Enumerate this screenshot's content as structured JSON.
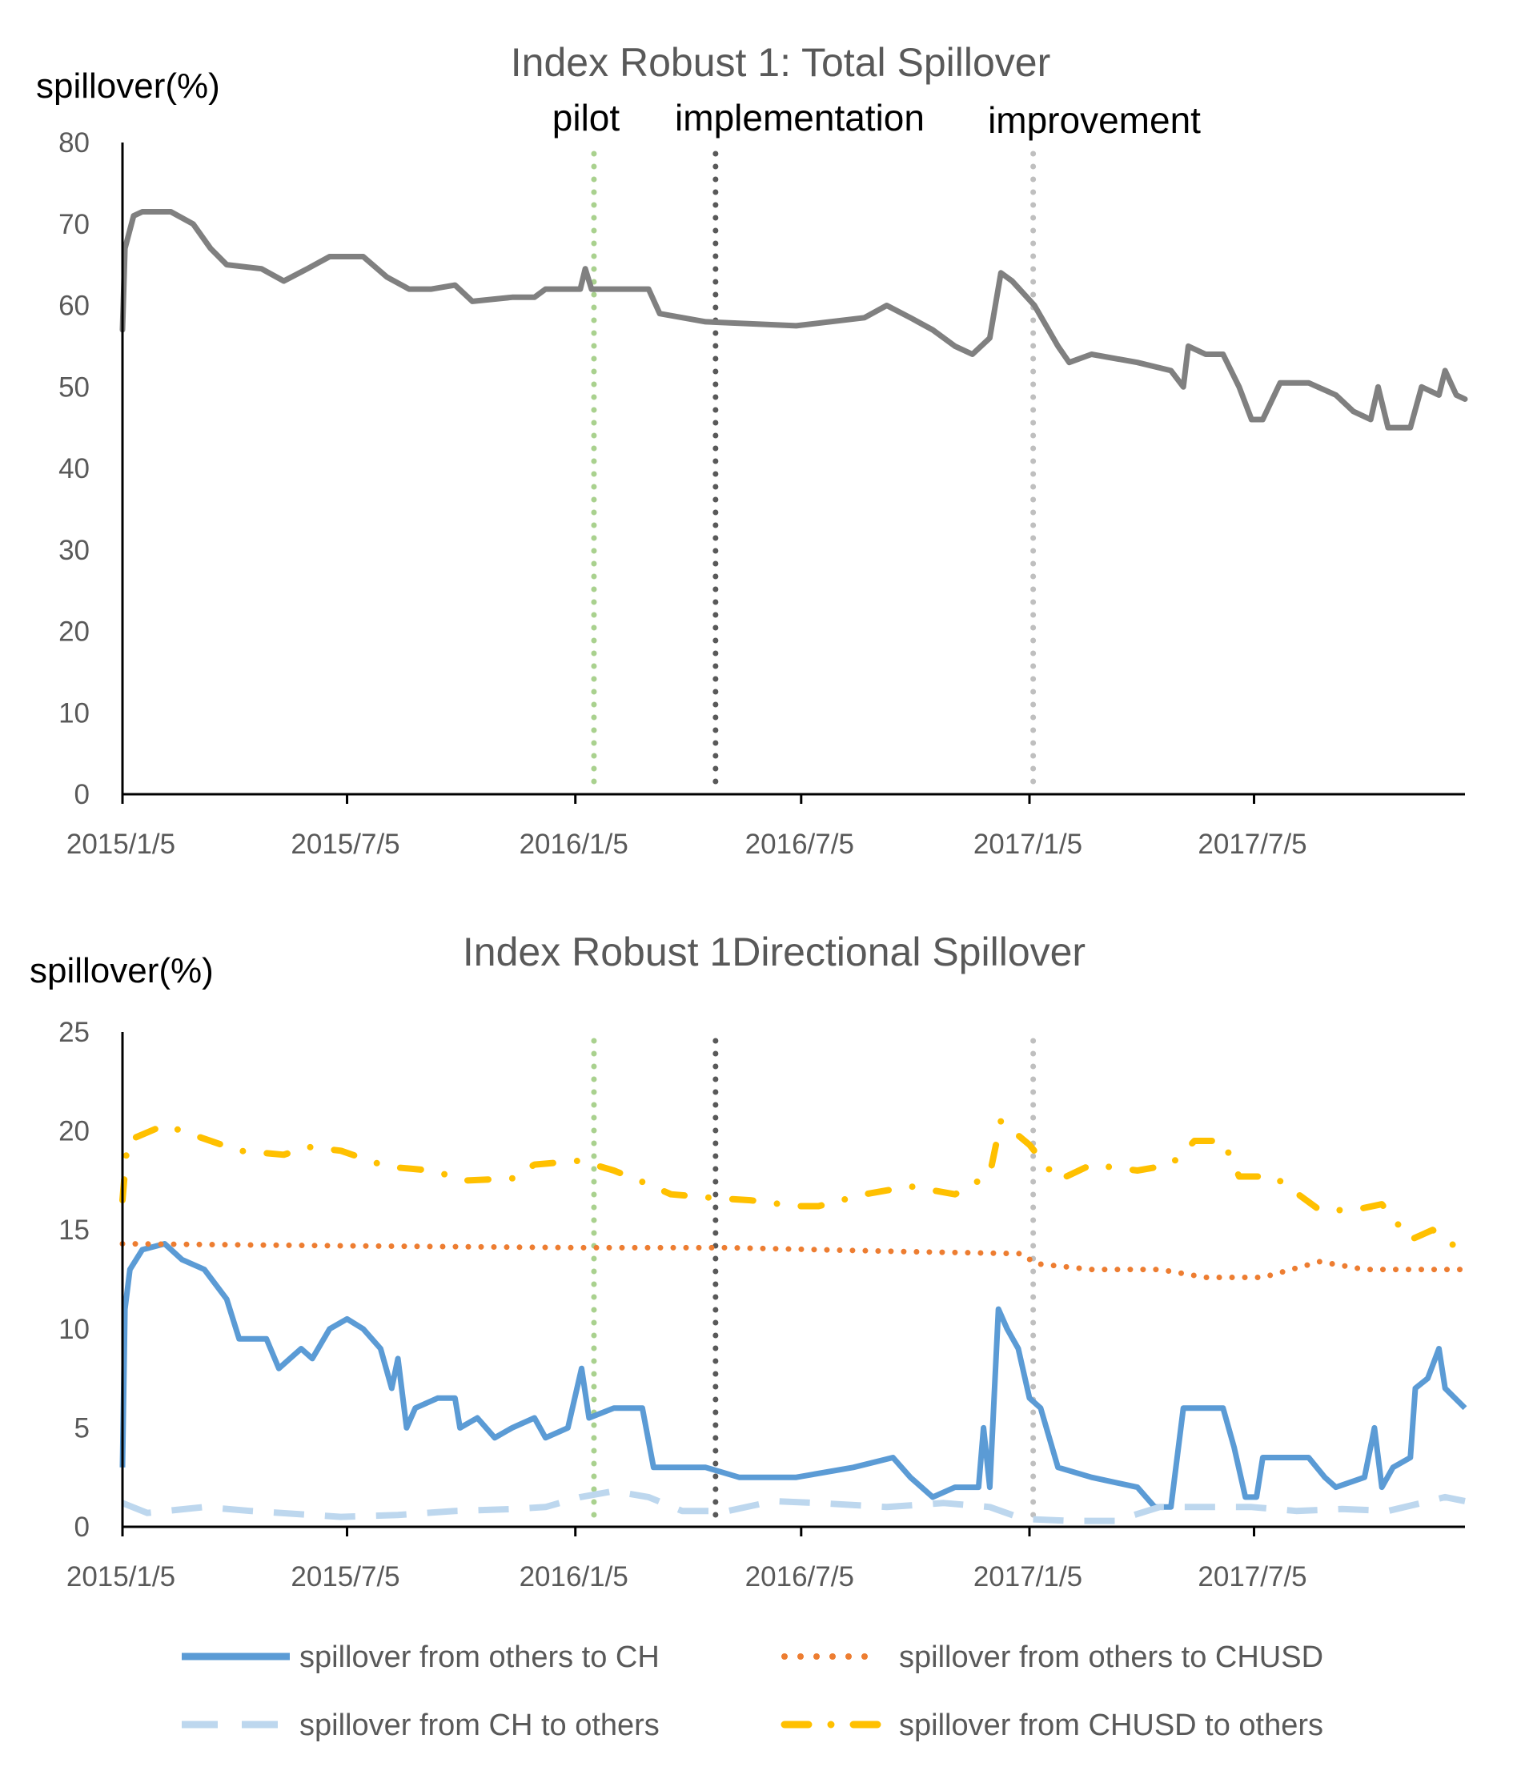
{
  "colors": {
    "total": "#808080",
    "others_to_ch": "#5b9bd5",
    "ch_to_others": "#bdd7ee",
    "others_to_chusd": "#ed7d31",
    "chusd_to_others": "#ffc000",
    "pilot": "#a9d18e",
    "implementation": "#595959",
    "improvement": "#bfbfbf"
  },
  "chart_data": [
    {
      "type": "line",
      "title": "Index Robust 1: Total Spillover",
      "ylabel": "spillover(%)",
      "xlabel": "",
      "x_unit": "days since 2015/1/5",
      "xlim": [
        0,
        1082
      ],
      "ylim": [
        0,
        80
      ],
      "yticks": [
        "0",
        "10",
        "20",
        "30",
        "40",
        "50",
        "60",
        "70",
        "80"
      ],
      "xticks": [
        {
          "day": 0,
          "label": "2015/1/5"
        },
        {
          "day": 181,
          "label": "2015/7/5"
        },
        {
          "day": 365,
          "label": "2016/1/5"
        },
        {
          "day": 547,
          "label": "2016/7/5"
        },
        {
          "day": 731,
          "label": "2017/1/5"
        },
        {
          "day": 912,
          "label": "2017/7/5"
        }
      ],
      "events": [
        {
          "day": 380,
          "label": "pilot"
        },
        {
          "day": 478,
          "label": "implementation"
        },
        {
          "day": 734,
          "label": "improvement"
        }
      ],
      "series": [
        {
          "name": "Total Spillover",
          "key": "total",
          "x": [
            0,
            2,
            9,
            16,
            39,
            57,
            71,
            84,
            112,
            130,
            149,
            167,
            194,
            213,
            231,
            249,
            268,
            282,
            314,
            332,
            341,
            369,
            373,
            378,
            424,
            433,
            470,
            543,
            598,
            616,
            635,
            653,
            671,
            685,
            699,
            708,
            717,
            735,
            754,
            763,
            781,
            818,
            845,
            855,
            859,
            873,
            887,
            900,
            910,
            919,
            933,
            956,
            978,
            992,
            1006,
            1012,
            1020,
            1038,
            1047,
            1061,
            1066,
            1075,
            1082
          ],
          "y": [
            57,
            67,
            71,
            71.5,
            71.5,
            70,
            67,
            65,
            64.5,
            63,
            64.5,
            66,
            66,
            63.5,
            62,
            62,
            62.5,
            60.5,
            61,
            61,
            62,
            62,
            64.5,
            62,
            62,
            59,
            58,
            57.5,
            58.5,
            60,
            58.5,
            57,
            55,
            54,
            56,
            64,
            63,
            60,
            55,
            53,
            54,
            53,
            52,
            50,
            55,
            54,
            54,
            50,
            46,
            46,
            50.5,
            50.5,
            49,
            47,
            46,
            50,
            45,
            45,
            50,
            49,
            52,
            49,
            48.5
          ]
        }
      ]
    },
    {
      "type": "line",
      "title": "Index Robust 1Directional  Spillover",
      "ylabel": "spillover(%)",
      "xlabel": "",
      "x_unit": "days since 2015/1/5",
      "xlim": [
        0,
        1082
      ],
      "ylim": [
        0,
        25
      ],
      "yticks": [
        "0",
        "5",
        "10",
        "15",
        "20",
        "25"
      ],
      "xticks": [
        {
          "day": 0,
          "label": "2015/1/5"
        },
        {
          "day": 181,
          "label": "2015/7/5"
        },
        {
          "day": 365,
          "label": "2016/1/5"
        },
        {
          "day": 547,
          "label": "2016/7/5"
        },
        {
          "day": 731,
          "label": "2017/1/5"
        },
        {
          "day": 912,
          "label": "2017/7/5"
        }
      ],
      "events": [
        {
          "day": 380,
          "label": "pilot"
        },
        {
          "day": 478,
          "label": "implementation"
        },
        {
          "day": 734,
          "label": "improvement"
        }
      ],
      "legend_position": "bottom",
      "series": [
        {
          "name": "spillover from others to CH",
          "key": "others_to_ch",
          "style": "solid",
          "x": [
            0,
            2,
            6,
            16,
            34,
            48,
            66,
            84,
            94,
            116,
            126,
            135,
            144,
            153,
            167,
            181,
            194,
            208,
            217,
            222,
            229,
            236,
            254,
            268,
            272,
            286,
            300,
            314,
            332,
            341,
            359,
            370,
            376,
            396,
            419,
            428,
            451,
            470,
            497,
            543,
            589,
            621,
            635,
            653,
            671,
            690,
            694,
            699,
            706,
            713,
            722,
            731,
            740,
            754,
            781,
            818,
            832,
            845,
            855,
            887,
            896,
            905,
            914,
            919,
            956,
            969,
            978,
            1001,
            1009,
            1015,
            1024,
            1038,
            1042,
            1052,
            1061,
            1066,
            1082
          ],
          "y": [
            3,
            11,
            13,
            14,
            14.3,
            13.5,
            13,
            11.5,
            9.5,
            9.5,
            8,
            8.5,
            9,
            8.5,
            10,
            10.5,
            10,
            9,
            7,
            8.5,
            5,
            6,
            6.5,
            6.5,
            5,
            5.5,
            4.5,
            5,
            5.5,
            4.5,
            5,
            8,
            5.5,
            6,
            6,
            3,
            3,
            3,
            2.5,
            2.5,
            3,
            3.5,
            2.5,
            1.5,
            2,
            2,
            5,
            2,
            11,
            10,
            9,
            6.5,
            6,
            3,
            2.5,
            2,
            1,
            1,
            6,
            6,
            4,
            1.5,
            1.5,
            3.5,
            3.5,
            2.5,
            2,
            2.5,
            5,
            2,
            3,
            3.5,
            7,
            7.5,
            9,
            7,
            6
          ]
        },
        {
          "name": "spillover from others to CHUSD",
          "key": "others_to_chusd",
          "style": "dotted",
          "x": [
            0,
            176,
            369,
            488,
            635,
            726,
            735,
            781,
            836,
            873,
            919,
            965,
            1001,
            1082
          ],
          "y": [
            14.3,
            14.2,
            14.1,
            14.1,
            13.9,
            13.8,
            13.3,
            13,
            13,
            12.6,
            12.6,
            13.4,
            13,
            13
          ]
        },
        {
          "name": "spillover from CH to others",
          "key": "ch_to_others",
          "style": "dashed",
          "x": [
            0,
            20,
            66,
            103,
            176,
            222,
            268,
            314,
            341,
            369,
            396,
            424,
            451,
            488,
            525,
            561,
            616,
            662,
            699,
            726,
            763,
            800,
            836,
            873,
            910,
            946,
            983,
            1020,
            1047,
            1066,
            1082
          ],
          "y": [
            1.2,
            0.7,
            1,
            0.8,
            0.5,
            0.6,
            0.8,
            0.9,
            1,
            1.5,
            1.8,
            1.5,
            0.8,
            0.8,
            1.3,
            1.2,
            1,
            1.2,
            1,
            0.4,
            0.3,
            0.3,
            1,
            1,
            1,
            0.8,
            0.9,
            0.8,
            1.2,
            1.5,
            1.3
          ]
        },
        {
          "name": "spillover from CHUSD to others",
          "key": "chusd_to_others",
          "style": "dash-dot",
          "x": [
            0,
            4,
            34,
            57,
            94,
            130,
            149,
            176,
            213,
            249,
            277,
            314,
            332,
            369,
            396,
            424,
            442,
            479,
            506,
            543,
            561,
            598,
            635,
            671,
            699,
            708,
            731,
            754,
            781,
            818,
            845,
            864,
            887,
            900,
            928,
            965,
            992,
            1015,
            1038,
            1056,
            1082
          ],
          "y": [
            16.5,
            19.5,
            20.3,
            19.8,
            19,
            18.8,
            19.2,
            19,
            18.2,
            18,
            17.5,
            17.6,
            18.3,
            18.5,
            18,
            17.3,
            16.8,
            16.6,
            16.5,
            16.2,
            16.2,
            16.8,
            17.2,
            16.8,
            17.8,
            20.5,
            19.3,
            17.5,
            18.3,
            18,
            18.3,
            19.5,
            19.5,
            17.7,
            17.7,
            16,
            16,
            16.3,
            14.5,
            15,
            13.8
          ]
        }
      ]
    }
  ]
}
